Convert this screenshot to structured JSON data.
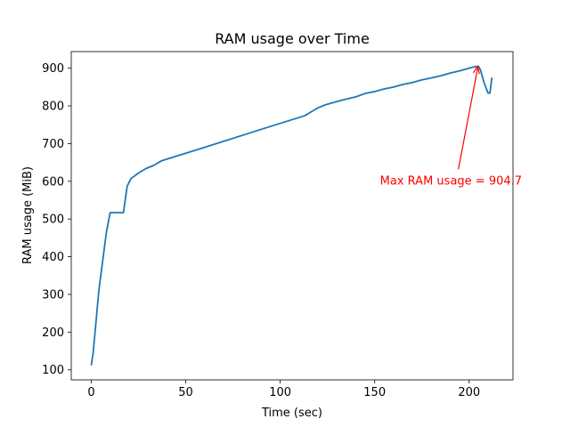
{
  "chart_data": {
    "type": "line",
    "title": "RAM usage over Time",
    "xlabel": "Time (sec)",
    "ylabel": "RAM usage (MiB)",
    "xlim": [
      -10.6,
      223.2
    ],
    "ylim": [
      73.4,
      944.0
    ],
    "xticks": [
      0,
      50,
      100,
      150,
      200
    ],
    "yticks": [
      100,
      200,
      300,
      400,
      500,
      600,
      700,
      800,
      900
    ],
    "grid": false,
    "series": [
      {
        "color": "#1f77b4",
        "x": [
          0,
          1,
          4,
          8,
          10,
          17,
          19,
          21,
          25,
          29,
          33,
          37,
          60,
          90,
          113,
          116,
          120,
          124,
          129,
          134,
          140,
          145,
          150,
          155,
          160,
          165,
          170,
          175,
          180,
          185,
          190,
          195,
          200,
          203,
          205,
          206,
          208,
          210,
          211,
          212
        ],
        "y": [
          112,
          145,
          310,
          465,
          517,
          517,
          587,
          607,
          622,
          634,
          642,
          654,
          690,
          738,
          774,
          783,
          795,
          803,
          810,
          817,
          824,
          833,
          838,
          845,
          850,
          857,
          862,
          869,
          874,
          880,
          887,
          893,
          900,
          904,
          904.7,
          895,
          860,
          834,
          834,
          875
        ]
      }
    ],
    "annotations": [
      {
        "text": "Max RAM usage = 904.7",
        "xy": [
          204.5,
          904.7
        ],
        "text_xy": [
          154.7,
          603.6
        ],
        "color": "#ff0000"
      }
    ]
  }
}
